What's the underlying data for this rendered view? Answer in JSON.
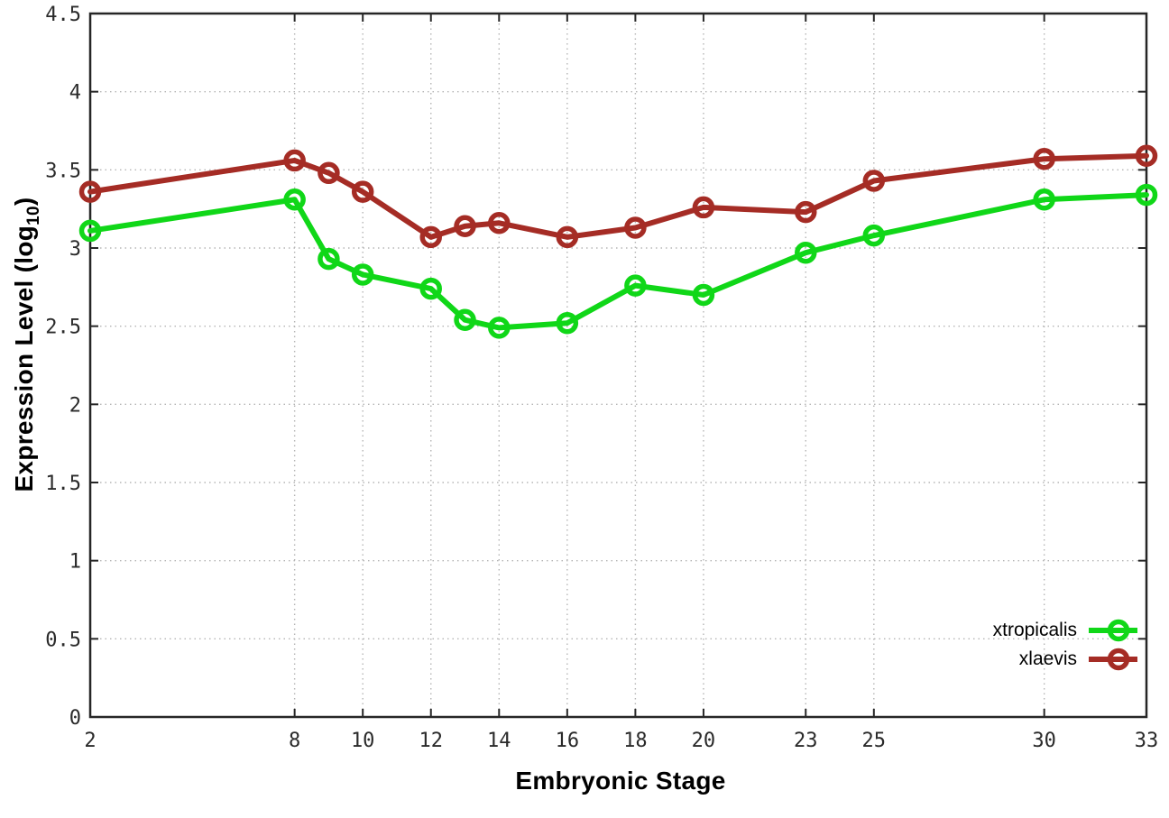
{
  "chart_data": {
    "type": "line",
    "title": "",
    "xlabel": "Embryonic Stage",
    "ylabel_main": "Expression Level (log",
    "ylabel_sub": "10",
    "ylabel_suffix": ")",
    "x": [
      2,
      8,
      9,
      10,
      12,
      13,
      14,
      16,
      18,
      20,
      23,
      25,
      30,
      33
    ],
    "series": [
      {
        "name": "xtropicalis",
        "color": "#10d718",
        "values": [
          3.11,
          3.31,
          2.93,
          2.83,
          2.74,
          2.54,
          2.49,
          2.52,
          2.76,
          2.7,
          2.97,
          3.08,
          3.31,
          3.34
        ]
      },
      {
        "name": "xlaevis",
        "color": "#a52c25",
        "values": [
          3.36,
          3.56,
          3.48,
          3.36,
          3.07,
          3.14,
          3.16,
          3.07,
          3.13,
          3.26,
          3.23,
          3.43,
          3.57,
          3.59
        ]
      }
    ],
    "xlim": [
      2,
      33
    ],
    "ylim": [
      0,
      4.5
    ],
    "xticks": [
      2,
      8,
      10,
      12,
      14,
      16,
      18,
      20,
      23,
      25,
      30,
      33
    ],
    "xtick_labels": [
      "2",
      "8",
      "10",
      "12",
      "14",
      "16",
      "18",
      "20",
      "23",
      "25",
      "30",
      "33"
    ],
    "yticks": [
      0,
      0.5,
      1,
      1.5,
      2,
      2.5,
      3,
      3.5,
      4,
      4.5
    ],
    "ytick_labels": [
      "0",
      "0.5",
      "1",
      "1.5",
      "2",
      "2.5",
      "3",
      "3.5",
      "4",
      "4.5"
    ],
    "grid": true,
    "grid_style": "dotted",
    "legend_position": "bottom-right",
    "marker": "open-circle",
    "border_color": "#262626",
    "grid_color": "#b5b5b5"
  }
}
